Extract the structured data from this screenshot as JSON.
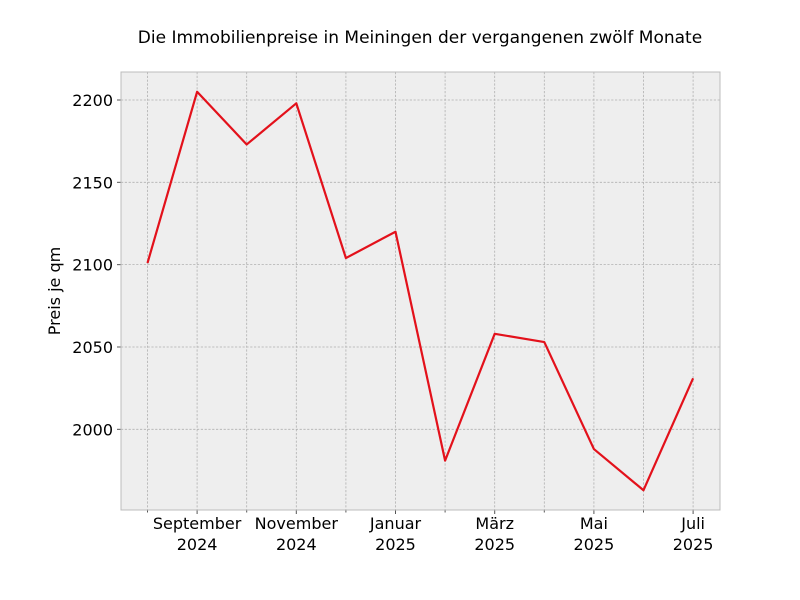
{
  "chart_data": {
    "type": "line",
    "title": "Die Immobilienpreise in Meiningen der vergangenen zwölf Monate",
    "xlabel": "",
    "ylabel": "Preis je qm",
    "x": [
      "2024-08",
      "2024-09",
      "2024-10",
      "2024-11",
      "2024-12",
      "2025-01",
      "2025-02",
      "2025-03",
      "2025-04",
      "2025-05",
      "2025-06",
      "2025-07"
    ],
    "series": [
      {
        "color": "#e3111b",
        "values": [
          2101,
          2205,
          2173,
          2198,
          2104,
          2120,
          1981,
          2058,
          2053,
          1988,
          1963,
          2031
        ]
      }
    ],
    "ylim": [
      1951,
      2217
    ],
    "yticks": [
      "2000",
      "2050",
      "2100",
      "2150",
      "2200"
    ],
    "xtick_labels": [
      {
        "month": "2024-09",
        "line1": "September",
        "line2": "2024"
      },
      {
        "month": "2024-11",
        "line1": "November",
        "line2": "2024"
      },
      {
        "month": "2025-01",
        "line1": "Januar",
        "line2": "2025"
      },
      {
        "month": "2025-03",
        "line1": "März",
        "line2": "2025"
      },
      {
        "month": "2025-05",
        "line1": "Mai",
        "line2": "2025"
      },
      {
        "month": "2025-07",
        "line1": "Juli",
        "line2": "2025"
      }
    ],
    "grid": true,
    "background": "#eeeeee",
    "grid_color": "#b0b0b0"
  }
}
